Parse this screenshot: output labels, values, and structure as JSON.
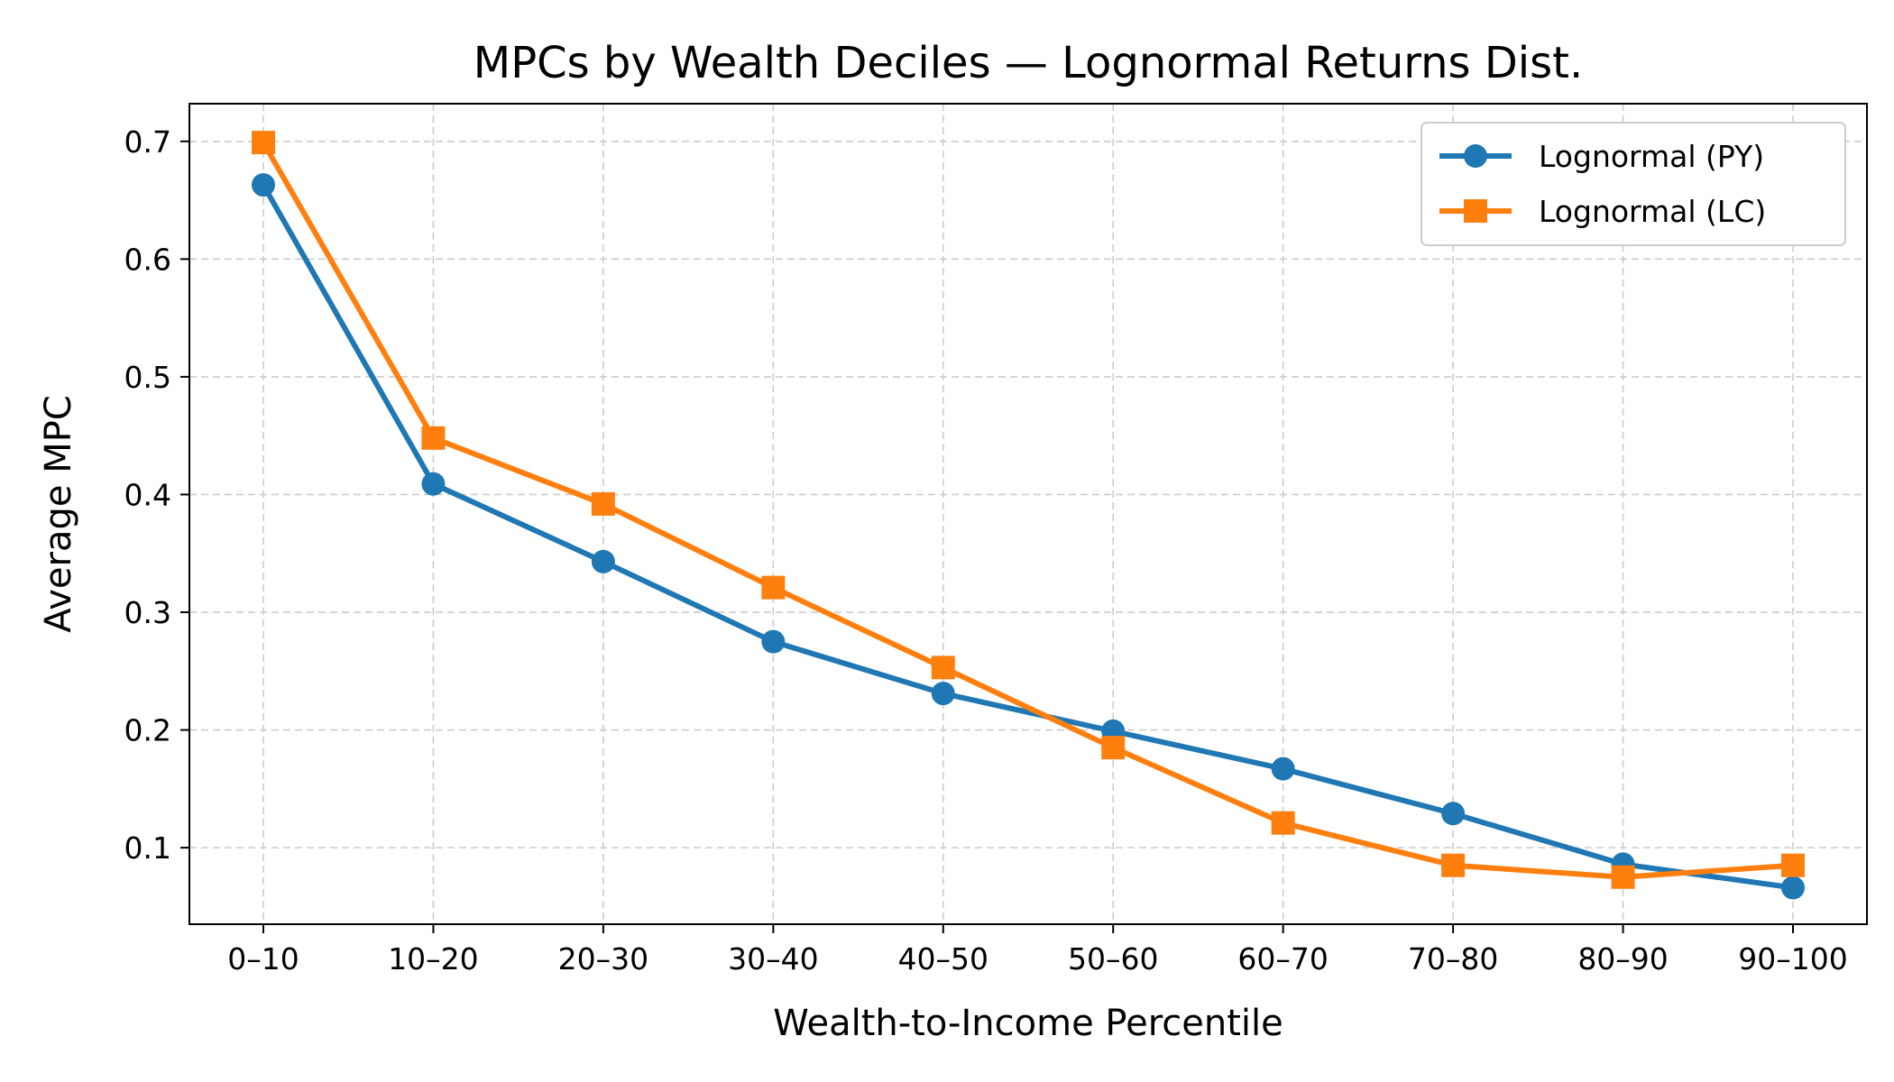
{
  "chart_data": {
    "type": "line",
    "title": "MPCs by Wealth Deciles — Lognormal Returns Dist.",
    "xlabel": "Wealth-to-Income Percentile",
    "ylabel": "Average MPC",
    "categories": [
      "0–10",
      "10–20",
      "20–30",
      "30–40",
      "40–50",
      "50–60",
      "60–70",
      "70–80",
      "80–90",
      "90–100"
    ],
    "ylim": [
      0.035,
      0.732
    ],
    "yticks": [
      0.1,
      0.2,
      0.3,
      0.4,
      0.5,
      0.6,
      0.7
    ],
    "ytick_labels": [
      "0.1",
      "0.2",
      "0.3",
      "0.4",
      "0.5",
      "0.6",
      "0.7"
    ],
    "grid": true,
    "legend_position": "top-right",
    "series": [
      {
        "name": "Lognormal (PY)",
        "color": "#1f77b4",
        "marker": "circle",
        "values": [
          0.663,
          0.409,
          0.343,
          0.275,
          0.231,
          0.199,
          0.167,
          0.129,
          0.086,
          0.066
        ]
      },
      {
        "name": "Lognormal (LC)",
        "color": "#ff7f0e",
        "marker": "square",
        "values": [
          0.699,
          0.448,
          0.392,
          0.321,
          0.253,
          0.185,
          0.121,
          0.085,
          0.075,
          0.085
        ]
      }
    ]
  }
}
